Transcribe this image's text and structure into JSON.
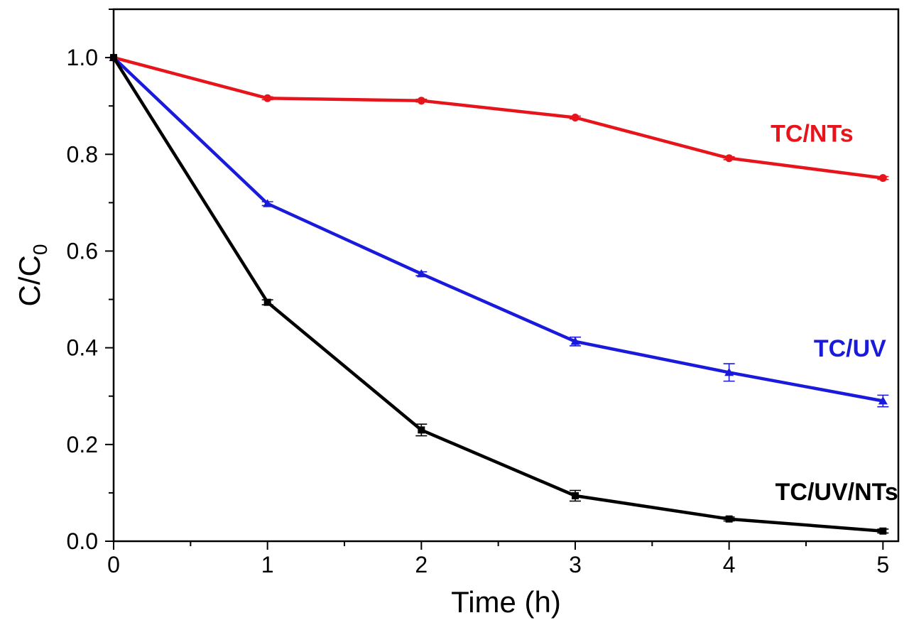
{
  "chart_data": {
    "type": "line",
    "title": "",
    "xlabel": "Time (h)",
    "ylabel_main": "C/C",
    "ylabel_sub": "0",
    "xlim": [
      0,
      5.1
    ],
    "ylim": [
      0,
      1.1
    ],
    "xticks": [
      0,
      1,
      2,
      3,
      4,
      5
    ],
    "xtick_labels": [
      "0",
      "1",
      "2",
      "3",
      "4",
      "5"
    ],
    "yticks": [
      0.0,
      0.2,
      0.4,
      0.6,
      0.8,
      1.0
    ],
    "ytick_labels": [
      "0.0",
      "0.2",
      "0.4",
      "0.6",
      "0.8",
      "1.0"
    ],
    "grid": false,
    "x": [
      0,
      1,
      2,
      3,
      4,
      5
    ],
    "series": [
      {
        "name": "TC/NTs",
        "color": "#e8141b",
        "marker": "circle",
        "values": [
          1.0,
          0.916,
          0.911,
          0.876,
          0.792,
          0.751
        ],
        "errors": [
          0,
          0.003,
          0.003,
          0.003,
          0.003,
          0.003
        ],
        "label_pos": [
          4.27,
          0.826
        ]
      },
      {
        "name": "TC/UV",
        "color": "#1a1adc",
        "marker": "triangle",
        "values": [
          1.0,
          0.698,
          0.553,
          0.413,
          0.349,
          0.29
        ],
        "errors": [
          0,
          0.004,
          0.004,
          0.009,
          0.018,
          0.012
        ],
        "label_pos": [
          4.55,
          0.382
        ]
      },
      {
        "name": "TC/UV/NTs",
        "color": "#000000",
        "marker": "square",
        "values": [
          1.0,
          0.494,
          0.23,
          0.094,
          0.046,
          0.021
        ],
        "errors": [
          0,
          0.005,
          0.012,
          0.011,
          0.004,
          0.004
        ],
        "label_pos": [
          4.3,
          0.085
        ]
      }
    ]
  }
}
